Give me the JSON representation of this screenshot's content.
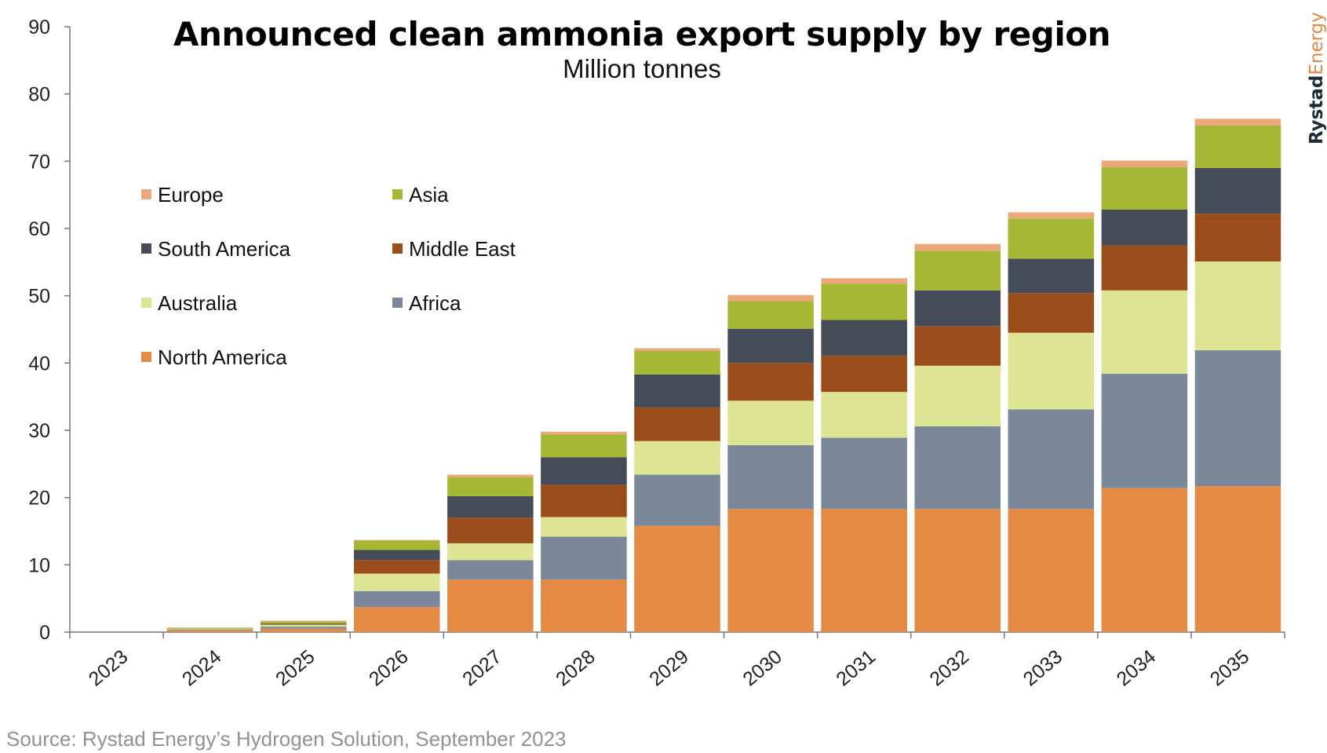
{
  "chart_data": {
    "type": "bar",
    "stacked": true,
    "title": "Announced clean ammonia export supply by region",
    "subtitle": "Million tonnes",
    "xlabel": "",
    "ylabel": "",
    "ylim": [
      0,
      90
    ],
    "yticks": [
      0,
      10,
      20,
      30,
      40,
      50,
      60,
      70,
      80,
      90
    ],
    "categories": [
      "2023",
      "2024",
      "2025",
      "2026",
      "2027",
      "2028",
      "2029",
      "2030",
      "2031",
      "2032",
      "2033",
      "2034",
      "2035"
    ],
    "legend_position": "top-left",
    "grid": false,
    "series": [
      {
        "name": "North America",
        "color": "#e58a45",
        "values": [
          0,
          0.3,
          0.5,
          3.7,
          7.8,
          7.8,
          15.8,
          18.3,
          18.3,
          18.3,
          18.3,
          21.4,
          21.7
        ]
      },
      {
        "name": "Africa",
        "color": "#7b8899",
        "values": [
          0,
          0.1,
          0.3,
          2.4,
          2.9,
          6.4,
          7.6,
          9.5,
          10.6,
          12.3,
          14.8,
          17.0,
          20.2
        ]
      },
      {
        "name": "Australia",
        "color": "#dde595",
        "values": [
          0,
          0.1,
          0.3,
          2.6,
          2.5,
          2.9,
          5.0,
          6.6,
          6.8,
          9.0,
          11.4,
          12.4,
          13.2
        ]
      },
      {
        "name": "Middle East",
        "color": "#9a4c1b",
        "values": [
          0,
          0.0,
          0.1,
          2.0,
          3.8,
          4.8,
          5.0,
          5.6,
          5.4,
          5.9,
          5.9,
          6.7,
          7.1
        ]
      },
      {
        "name": "South America",
        "color": "#454b57",
        "values": [
          0,
          0.0,
          0.1,
          1.5,
          3.2,
          4.1,
          4.9,
          5.1,
          5.3,
          5.3,
          5.1,
          5.3,
          6.8
        ]
      },
      {
        "name": "Asia",
        "color": "#a6b736",
        "values": [
          0,
          0.1,
          0.3,
          1.4,
          2.8,
          3.4,
          3.5,
          4.1,
          5.4,
          5.9,
          6.0,
          6.3,
          6.3
        ]
      },
      {
        "name": "Europe",
        "color": "#eca77a",
        "values": [
          0,
          0.1,
          0.1,
          0.1,
          0.4,
          0.4,
          0.4,
          0.9,
          0.8,
          1.0,
          0.9,
          1.0,
          1.0
        ]
      }
    ],
    "legend_order": [
      "Europe",
      "Asia",
      "South America",
      "Middle East",
      "Australia",
      "Africa",
      "North America"
    ]
  },
  "source": "Source: Rystad Energy’s Hydrogen Solution, September 2023",
  "brand": {
    "part1": "Rystad",
    "part2": "Energy",
    "color1": "#1f2b3c",
    "color2": "#e58a45"
  }
}
